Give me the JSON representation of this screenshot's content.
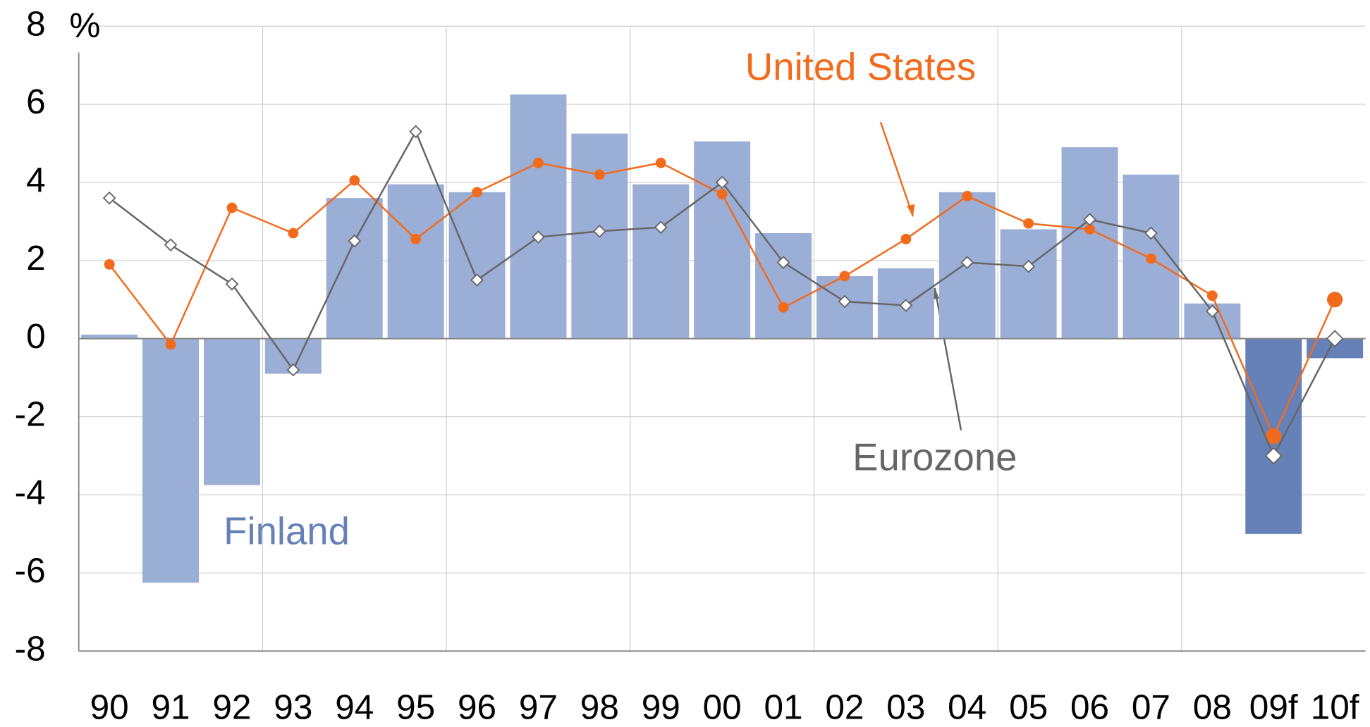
{
  "chart_data": {
    "type": "bar_line",
    "y_label": "%",
    "categories": [
      "90",
      "91",
      "92",
      "93",
      "94",
      "95",
      "96",
      "97",
      "98",
      "99",
      "00",
      "01",
      "02",
      "03",
      "04",
      "05",
      "06",
      "07",
      "08",
      "09f",
      "10f"
    ],
    "ylim": [
      -8,
      8
    ],
    "yticks": [
      -8,
      -6,
      -4,
      -2,
      0,
      2,
      4,
      6,
      8
    ],
    "grid": true,
    "series": [
      {
        "name": "Finland",
        "type": "bar",
        "color": "#9aaed6",
        "colors": [
          "#9aaed6",
          "#9aaed6",
          "#9aaed6",
          "#9aaed6",
          "#9aaed6",
          "#9aaed6",
          "#9aaed6",
          "#9aaed6",
          "#9aaed6",
          "#9aaed6",
          "#9aaed6",
          "#9aaed6",
          "#9aaed6",
          "#9aaed6",
          "#9aaed6",
          "#9aaed6",
          "#9aaed6",
          "#9aaed6",
          "#9aaed6",
          "#6680b8",
          "#6680b8"
        ],
        "values": [
          0.1,
          -6.25,
          -3.75,
          -0.9,
          3.6,
          3.95,
          3.75,
          6.25,
          5.25,
          3.95,
          5.05,
          2.7,
          1.6,
          1.8,
          3.75,
          2.8,
          4.9,
          4.2,
          0.9,
          -5.0,
          -0.5
        ]
      },
      {
        "name": "United States",
        "type": "line",
        "color": "#f26b1d",
        "values": [
          1.9,
          -0.15,
          3.35,
          2.7,
          4.05,
          2.55,
          3.75,
          4.5,
          4.2,
          4.5,
          3.7,
          0.8,
          1.6,
          2.55,
          3.65,
          2.95,
          2.8,
          2.05,
          1.1,
          -2.5,
          1.0
        ]
      },
      {
        "name": "Eurozone",
        "type": "line",
        "color": "#666666",
        "values": [
          3.6,
          2.4,
          1.4,
          -0.8,
          2.5,
          5.3,
          1.5,
          2.6,
          2.75,
          2.85,
          4.0,
          1.95,
          0.95,
          0.85,
          1.95,
          1.85,
          3.05,
          2.7,
          0.7,
          -3.0,
          0.0
        ]
      }
    ]
  }
}
